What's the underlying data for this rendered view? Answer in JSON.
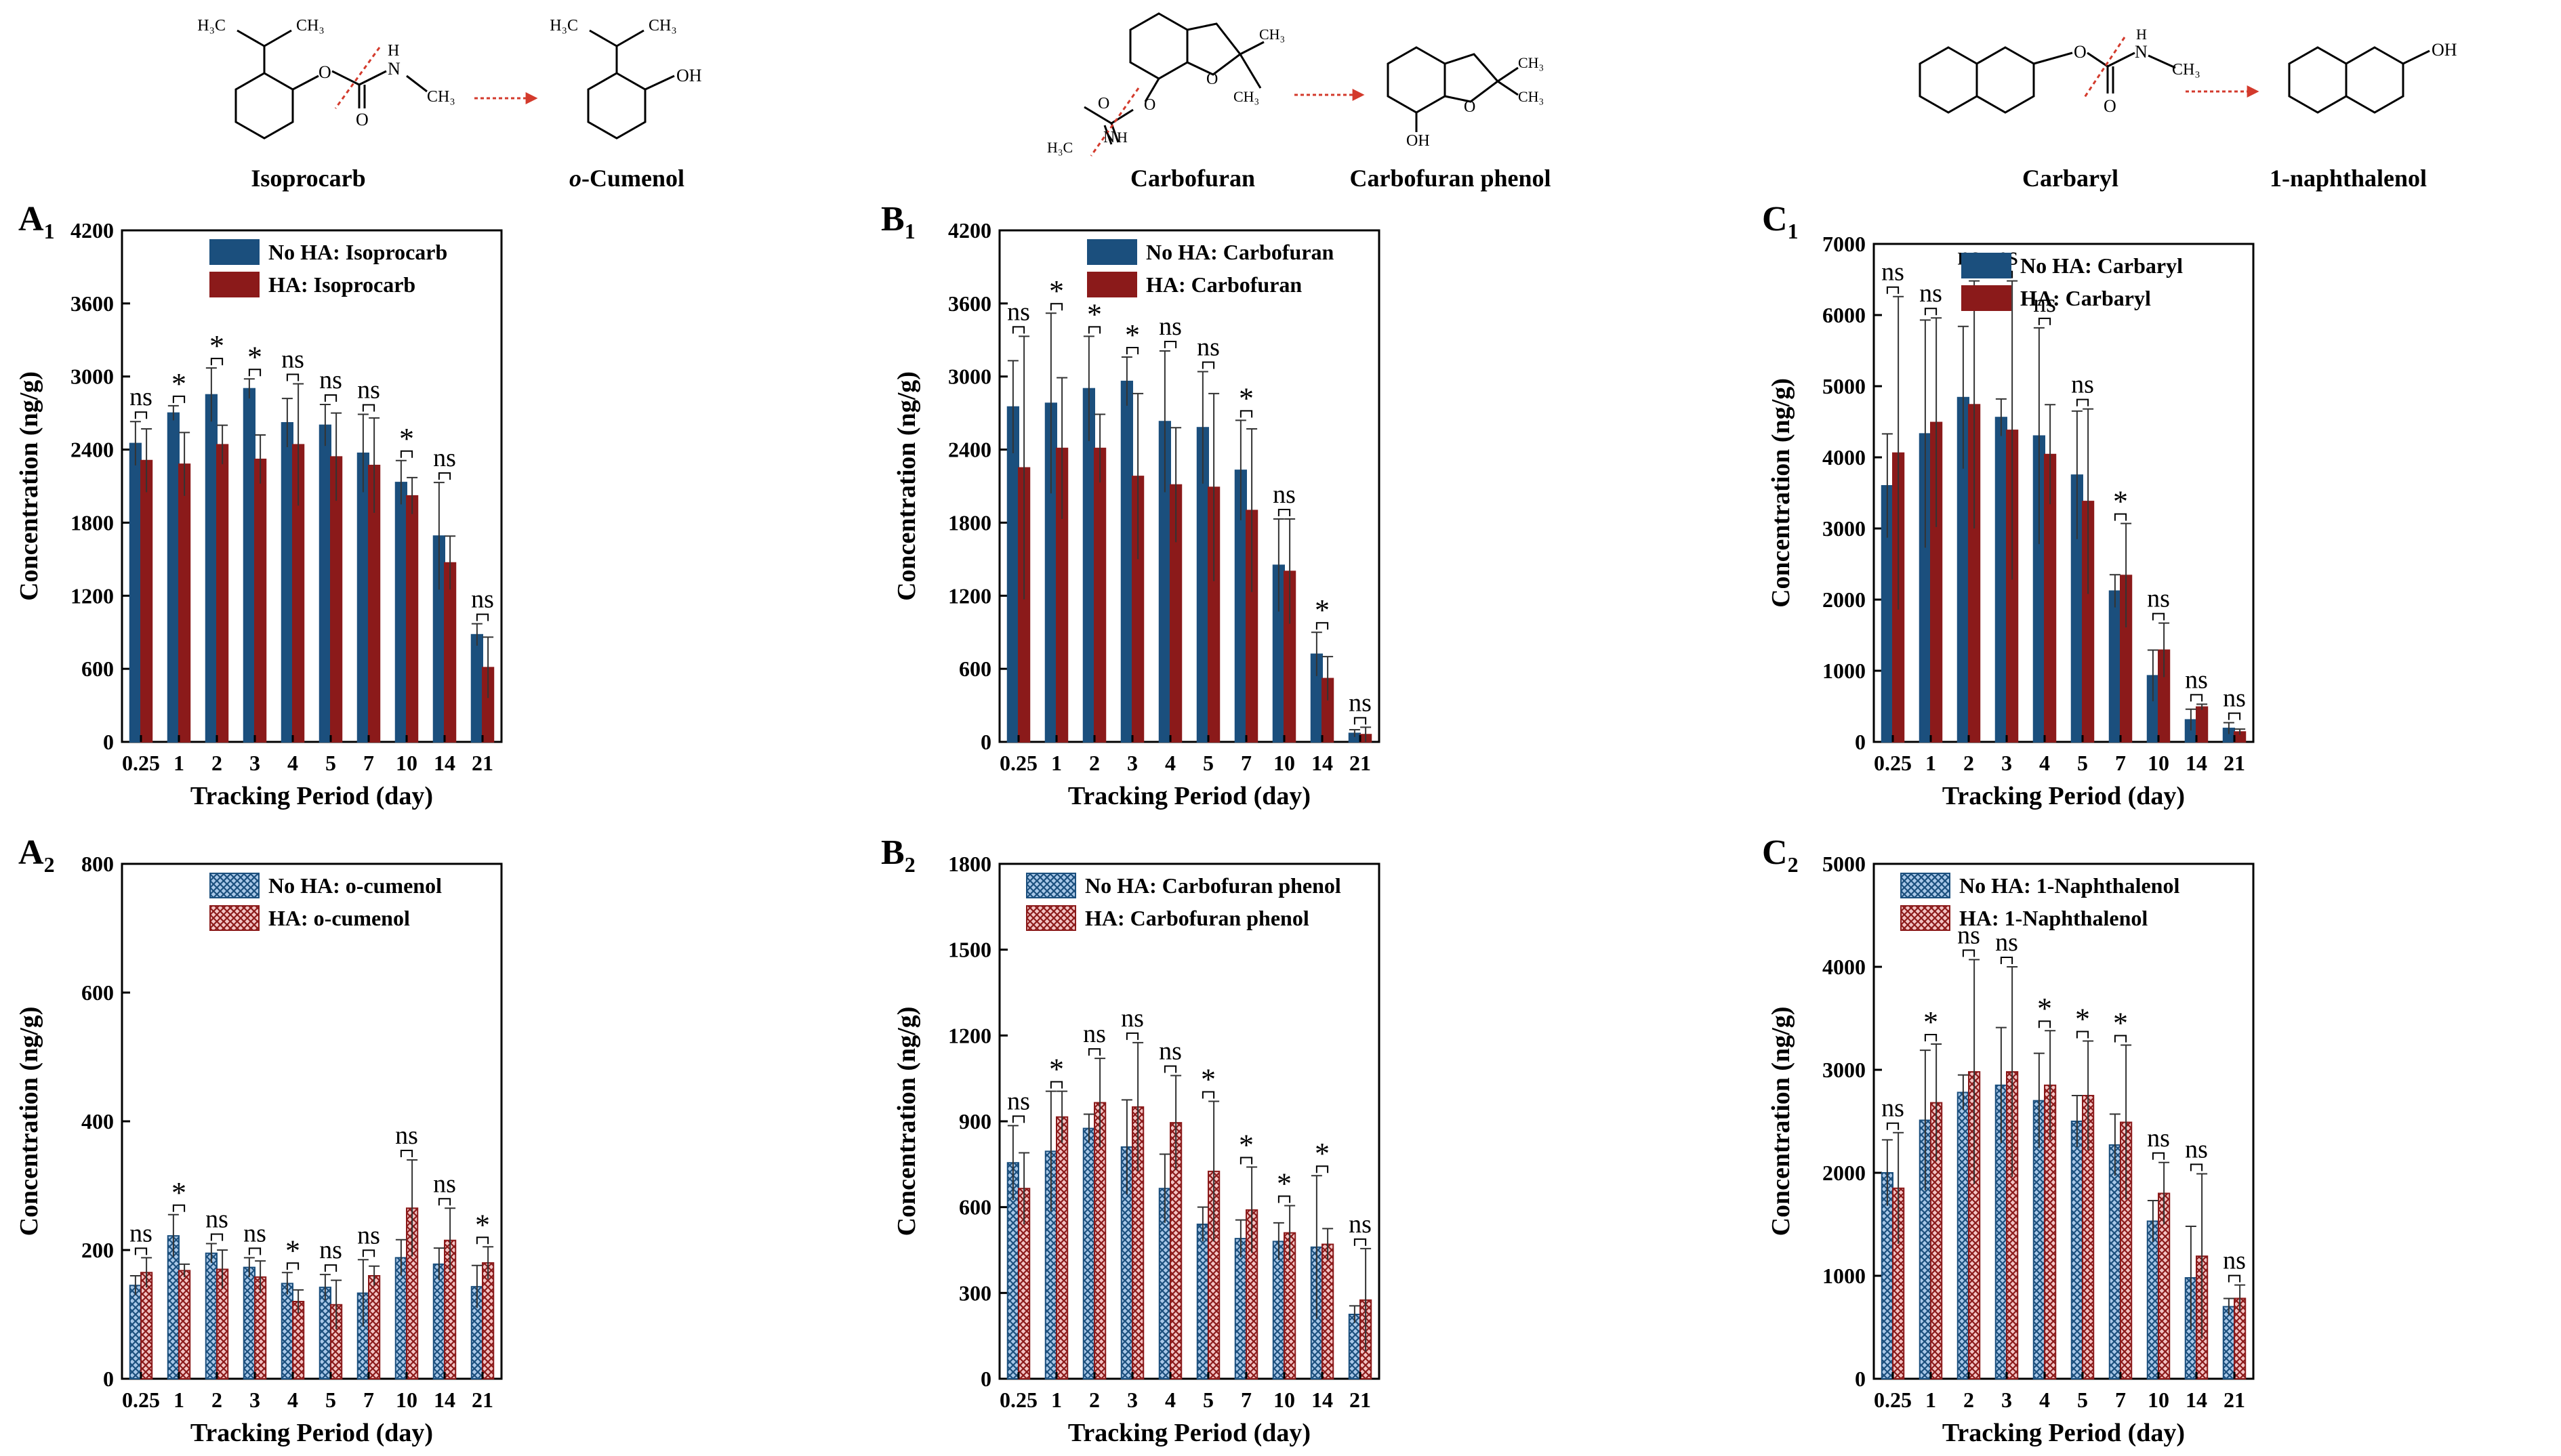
{
  "colors": {
    "no_ha": "#1b4f7d",
    "ha": "#8b1a1a",
    "no_ha_light": "#a9c8e8",
    "ha_light": "#e9a3a3",
    "arrow": "#d33a2c"
  },
  "schemes": [
    {
      "parent": "Isoprocarb",
      "product_prefix": "o",
      "product_suffix": "-Cumenol",
      "atoms": [
        "H₃C",
        "CH₃",
        "H₃C",
        "CH₃",
        "O",
        "N",
        "H",
        "O",
        "CH₃",
        "OH"
      ]
    },
    {
      "parent": "Carbofuran",
      "product": "Carbofuran phenol",
      "atoms": [
        "O",
        "CH₃",
        "CH₃",
        "O",
        "O",
        "N",
        "H",
        "H₃C",
        "O",
        "CH₃",
        "CH₃",
        "OH"
      ]
    },
    {
      "parent": "Carbaryl",
      "product": "1-naphthalenol",
      "atoms": [
        "O",
        "N",
        "H",
        "CH₃",
        "O",
        "OH"
      ]
    }
  ],
  "chart_data": [
    {
      "panel": "A",
      "sub": "1",
      "type": "bar",
      "style": "solid",
      "categories": [
        "0.25",
        "1",
        "2",
        "3",
        "4",
        "5",
        "7",
        "10",
        "14",
        "21"
      ],
      "xlabel": "Tracking Period (day)",
      "ylabel": "Concentration (ng/g)",
      "ylim": [
        0,
        4200
      ],
      "yticks": [
        "0",
        "600",
        "1200",
        "1800",
        "2400",
        "3000",
        "3600",
        "4200"
      ],
      "legend_position": "top-right",
      "series": [
        {
          "name": "No HA: Isoprocarb",
          "values": [
            2450,
            2700,
            2850,
            2900,
            2620,
            2600,
            2370,
            2130,
            1690,
            880
          ],
          "errors": [
            180,
            60,
            220,
            80,
            200,
            170,
            320,
            180,
            440,
            90
          ]
        },
        {
          "name": "HA: Isoprocarb",
          "values": [
            2310,
            2280,
            2440,
            2320,
            2440,
            2340,
            2270,
            2020,
            1470,
            610
          ],
          "errors": [
            260,
            260,
            160,
            200,
            500,
            360,
            390,
            150,
            220,
            250
          ]
        }
      ],
      "significance": [
        "ns",
        "*",
        "*",
        "*",
        "ns",
        "ns",
        "ns",
        "*",
        "ns",
        "ns"
      ]
    },
    {
      "panel": "B",
      "sub": "1",
      "type": "bar",
      "style": "solid",
      "categories": [
        "0.25",
        "1",
        "2",
        "3",
        "4",
        "5",
        "7",
        "10",
        "14",
        "21"
      ],
      "xlabel": "Tracking Period (day)",
      "ylabel": "Concentration (ng/g)",
      "ylim": [
        0,
        4200
      ],
      "yticks": [
        "0",
        "600",
        "1200",
        "1800",
        "2400",
        "3000",
        "3600",
        "4200"
      ],
      "legend_position": "top-right",
      "series": [
        {
          "name": "No HA: Carbofuran",
          "values": [
            2750,
            2780,
            2900,
            2960,
            2630,
            2580,
            2230,
            1450,
            720,
            70
          ],
          "errors": [
            380,
            740,
            430,
            200,
            580,
            460,
            410,
            380,
            180,
            30
          ]
        },
        {
          "name": "HA: Carbofuran",
          "values": [
            2250,
            2410,
            2410,
            2180,
            2110,
            2090,
            1900,
            1400,
            520,
            60
          ],
          "errors": [
            1080,
            580,
            280,
            680,
            470,
            770,
            670,
            430,
            180,
            60
          ]
        }
      ],
      "significance": [
        "ns",
        "*",
        "*",
        "*",
        "ns",
        "ns",
        "*",
        "ns",
        "*",
        "ns"
      ]
    },
    {
      "panel": "C",
      "sub": "1",
      "type": "bar",
      "style": "solid",
      "categories": [
        "0.25",
        "1",
        "2",
        "3",
        "4",
        "5",
        "7",
        "10",
        "14",
        "21"
      ],
      "xlabel": "Tracking Period (day)",
      "ylabel": "Concentration (ng/g)",
      "ylim": [
        0,
        7000
      ],
      "yticks": [
        "0",
        "1000",
        "2000",
        "3000",
        "4000",
        "5000",
        "6000",
        "7000"
      ],
      "legend_position": "top-right",
      "series": [
        {
          "name": "No HA: Carbaryl",
          "values": [
            3600,
            4330,
            4840,
            4560,
            4300,
            3750,
            2120,
            930,
            310,
            190
          ],
          "errors": [
            730,
            1600,
            1000,
            260,
            1520,
            900,
            230,
            360,
            150,
            80
          ]
        },
        {
          "name": "HA: Carbaryl",
          "values": [
            4060,
            4490,
            4740,
            4380,
            4040,
            3380,
            2340,
            1290,
            490,
            140
          ],
          "errors": [
            2200,
            1470,
            1740,
            2100,
            700,
            1300,
            730,
            380,
            40,
            40
          ]
        }
      ],
      "significance": [
        "ns",
        "ns",
        "ns",
        "ns",
        "ns",
        "ns",
        "*",
        "ns",
        "ns",
        "ns"
      ]
    },
    {
      "panel": "A",
      "sub": "2",
      "type": "bar",
      "style": "hatched",
      "categories": [
        "0.25",
        "1",
        "2",
        "3",
        "4",
        "5",
        "7",
        "10",
        "14",
        "21"
      ],
      "xlabel": "Tracking Period (day)",
      "ylabel": "Concentration (ng/g)",
      "ylim": [
        0,
        800
      ],
      "yticks": [
        "0",
        "200",
        "400",
        "600",
        "800"
      ],
      "legend_position": "top-right",
      "series": [
        {
          "name": "No HA: o-cumenol",
          "values": [
            145,
            222,
            195,
            173,
            148,
            142,
            133,
            188,
            178,
            143
          ],
          "errors": [
            15,
            33,
            15,
            15,
            17,
            20,
            52,
            28,
            25,
            33
          ]
        },
        {
          "name": "HA: o-cumenol",
          "values": [
            165,
            168,
            170,
            158,
            120,
            115,
            160,
            265,
            215,
            180
          ],
          "errors": [
            23,
            10,
            30,
            25,
            18,
            38,
            15,
            75,
            50,
            25
          ]
        }
      ],
      "significance": [
        "ns",
        "*",
        "ns",
        "ns",
        "*",
        "ns",
        "ns",
        "ns",
        "ns",
        "*"
      ]
    },
    {
      "panel": "B",
      "sub": "2",
      "type": "bar",
      "style": "hatched",
      "categories": [
        "0.25",
        "1",
        "2",
        "3",
        "4",
        "5",
        "7",
        "10",
        "14",
        "21"
      ],
      "xlabel": "Tracking Period (day)",
      "ylabel": "Concentration (ng/g)",
      "ylim": [
        0,
        1800
      ],
      "yticks": [
        "0",
        "300",
        "600",
        "900",
        "1200",
        "1500",
        "1800"
      ],
      "legend_position": "top-right",
      "series": [
        {
          "name": "No HA: Carbofuran phenol",
          "values": [
            755,
            795,
            875,
            810,
            665,
            540,
            490,
            480,
            460,
            225
          ],
          "errors": [
            130,
            210,
            50,
            165,
            120,
            60,
            65,
            65,
            250,
            30
          ]
        },
        {
          "name": "HA: Carbofuran phenol",
          "values": [
            665,
            915,
            965,
            950,
            895,
            725,
            590,
            510,
            470,
            275
          ],
          "errors": [
            125,
            90,
            155,
            225,
            165,
            245,
            150,
            95,
            55,
            180
          ]
        }
      ],
      "significance": [
        "ns",
        "*",
        "ns",
        "ns",
        "ns",
        "*",
        "*",
        "*",
        "*",
        "ns"
      ]
    },
    {
      "panel": "C",
      "sub": "2",
      "type": "bar",
      "style": "hatched",
      "categories": [
        "0.25",
        "1",
        "2",
        "3",
        "4",
        "5",
        "7",
        "10",
        "14",
        "21"
      ],
      "xlabel": "Tracking Period (day)",
      "ylabel": "Concentration (ng/g)",
      "ylim": [
        0,
        5000
      ],
      "yticks": [
        "0",
        "1000",
        "2000",
        "3000",
        "4000",
        "5000"
      ],
      "legend_position": "top-right",
      "series": [
        {
          "name": "No HA: 1-Naphthalenol",
          "values": [
            2000,
            2510,
            2780,
            2850,
            2700,
            2500,
            2270,
            1530,
            980,
            700
          ],
          "errors": [
            320,
            680,
            170,
            560,
            460,
            250,
            300,
            200,
            500,
            80
          ]
        },
        {
          "name": "HA: 1-Naphthalenol",
          "values": [
            1850,
            2680,
            2980,
            2980,
            2850,
            2750,
            2490,
            1800,
            1190,
            780
          ],
          "errors": [
            540,
            570,
            1090,
            1020,
            530,
            530,
            750,
            300,
            800,
            130
          ]
        }
      ],
      "significance": [
        "ns",
        "*",
        "ns",
        "ns",
        "*",
        "*",
        "*",
        "ns",
        "ns",
        "ns"
      ]
    }
  ]
}
